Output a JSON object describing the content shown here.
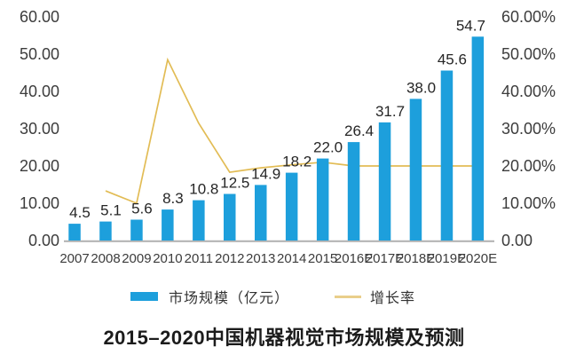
{
  "chart_data": {
    "type": "bar+line",
    "title": "2015–2020中国机器视觉市场规模及预测",
    "categories": [
      "2007",
      "2008",
      "2009",
      "2010",
      "2011",
      "2012",
      "2013",
      "2014",
      "2015",
      "2016E",
      "2017E",
      "2018E",
      "2019E",
      "2020E"
    ],
    "series": [
      {
        "name": "市场规模（亿元）",
        "type": "bar",
        "color": "#1D9FDC",
        "axis": "left",
        "values": [
          4.5,
          5.1,
          5.6,
          8.3,
          10.8,
          12.5,
          14.9,
          18.2,
          22.0,
          26.4,
          31.7,
          38.0,
          45.6,
          54.7
        ],
        "labels": [
          "4.5",
          "5.1",
          "5.6",
          "8.3",
          "10.8",
          "12.5",
          "14.9",
          "18.2",
          "22.0",
          "26.4",
          "31.7",
          "38.0",
          "45.6",
          "54.7"
        ]
      },
      {
        "name": "增长率",
        "type": "line",
        "color": "#E2BC55",
        "axis": "right",
        "values_percent": [
          null,
          13.3,
          10.0,
          48.5,
          31.5,
          18.3,
          19.5,
          20.3,
          21.0,
          20.0,
          20.0,
          20.0,
          20.0,
          20.0
        ]
      }
    ],
    "left_axis": {
      "min": 0,
      "max": 60,
      "ticks": [
        "0.00",
        "10.00",
        "20.00",
        "30.00",
        "40.00",
        "50.00",
        "60.00"
      ]
    },
    "right_axis": {
      "min": 0,
      "max": 60,
      "ticks": [
        "0.00",
        "10.00%",
        "20.00%",
        "30.00%",
        "40.00%",
        "50.00%",
        "60.00%"
      ]
    },
    "legend": {
      "position": "bottom",
      "items": [
        {
          "label": "市场规模（亿元）",
          "swatch": "bar",
          "color": "#1D9FDC"
        },
        {
          "label": "增长率",
          "swatch": "line",
          "color": "#E9CE8A"
        }
      ]
    },
    "grid": false,
    "axis_line_color": "#b5b5b5"
  }
}
